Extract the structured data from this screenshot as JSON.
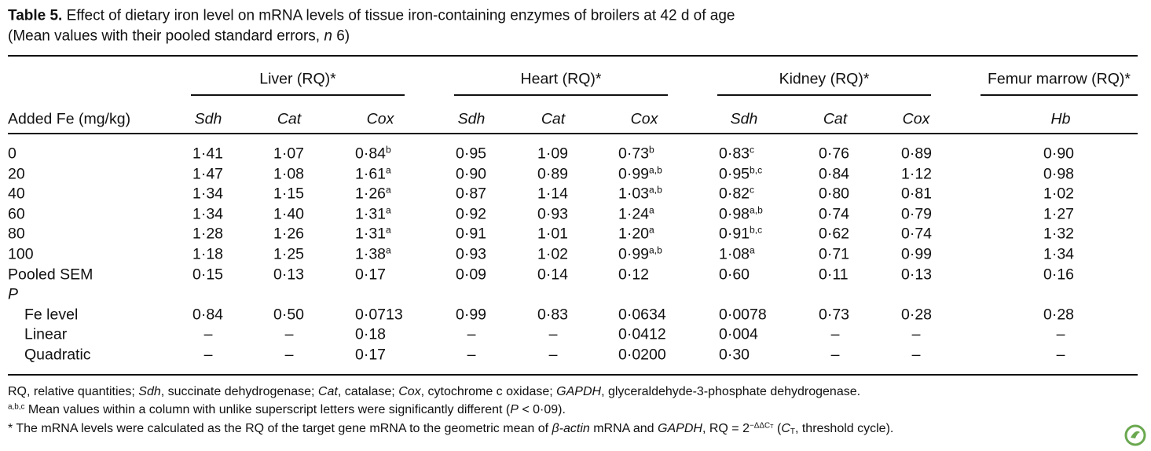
{
  "caption": {
    "line1": [
      {
        "b": "Table 5."
      },
      {
        "t": " Effect of dietary iron level on mRNA levels of tissue iron-containing enzymes of broilers at 42 d of age"
      }
    ],
    "line2": [
      {
        "t": "(Mean values with their pooled standard errors, "
      },
      {
        "i": "n"
      },
      {
        "t": " 6)"
      }
    ]
  },
  "table": {
    "row_header": "Added Fe (mg/kg)",
    "groups": [
      {
        "name": "Liver (RQ)*",
        "genes": [
          "Sdh",
          "Cat",
          "Cox"
        ]
      },
      {
        "name": "Heart (RQ)*",
        "genes": [
          "Sdh",
          "Cat",
          "Cox"
        ]
      },
      {
        "name": "Kidney (RQ)*",
        "genes": [
          "Sdh",
          "Cat",
          "Cox"
        ]
      },
      {
        "name": "Femur marrow (RQ)*",
        "genes": [
          "Hb"
        ]
      }
    ],
    "rows": [
      {
        "label": "0",
        "cells": [
          "1·41",
          "1·07",
          {
            "v": "0·84",
            "sup": "b"
          },
          "0·95",
          "1·09",
          {
            "v": "0·73",
            "sup": "b"
          },
          {
            "v": "0·83",
            "sup": "c"
          },
          "0·76",
          "0·89",
          "0·90"
        ]
      },
      {
        "label": "20",
        "cells": [
          "1·47",
          "1·08",
          {
            "v": "1·61",
            "sup": "a"
          },
          "0·90",
          "0·89",
          {
            "v": "0·99",
            "sup": "a,b"
          },
          {
            "v": "0·95",
            "sup": "b,c"
          },
          "0·84",
          "1·12",
          "0·98"
        ]
      },
      {
        "label": "40",
        "cells": [
          "1·34",
          "1·15",
          {
            "v": "1·26",
            "sup": "a"
          },
          "0·87",
          "1·14",
          {
            "v": "1·03",
            "sup": "a,b"
          },
          {
            "v": "0·82",
            "sup": "c"
          },
          "0·80",
          "0·81",
          "1·02"
        ]
      },
      {
        "label": "60",
        "cells": [
          "1·34",
          "1·40",
          {
            "v": "1·31",
            "sup": "a"
          },
          "0·92",
          "0·93",
          {
            "v": "1·24",
            "sup": "a"
          },
          {
            "v": "0·98",
            "sup": "a,b"
          },
          "0·74",
          "0·79",
          "1·27"
        ]
      },
      {
        "label": "80",
        "cells": [
          "1·28",
          "1·26",
          {
            "v": "1·31",
            "sup": "a"
          },
          "0·91",
          "1·01",
          {
            "v": "1·20",
            "sup": "a"
          },
          {
            "v": "0·91",
            "sup": "b,c"
          },
          "0·62",
          "0·74",
          "1·32"
        ]
      },
      {
        "label": "100",
        "cells": [
          "1·18",
          "1·25",
          {
            "v": "1·38",
            "sup": "a"
          },
          "0·93",
          "1·02",
          {
            "v": "0·99",
            "sup": "a,b"
          },
          {
            "v": "1·08",
            "sup": "a"
          },
          "0·71",
          "0·99",
          "1·34"
        ]
      },
      {
        "label": "Pooled SEM",
        "cells": [
          "0·15",
          "0·13",
          "0·17",
          "0·09",
          "0·14",
          "0·12",
          "0·60",
          "0·11",
          "0·13",
          "0·16"
        ]
      }
    ],
    "p_section": {
      "label": "P",
      "rows": [
        {
          "label": "Fe level",
          "cells": [
            "0·84",
            "0·50",
            "0·0713",
            "0·99",
            "0·83",
            "0·0634",
            "0·0078",
            "0·73",
            "0·28",
            "0·28"
          ]
        },
        {
          "label": "Linear",
          "cells": [
            "–",
            "–",
            "0·18",
            "–",
            "–",
            "0·0412",
            "0·004",
            "–",
            "–",
            "–"
          ]
        },
        {
          "label": "Quadratic",
          "cells": [
            "–",
            "–",
            "0·17",
            "–",
            "–",
            "0·0200",
            "0·30",
            "–",
            "–",
            "–"
          ]
        }
      ]
    }
  },
  "footnotes": [
    [
      {
        "t": "RQ, relative quantities; "
      },
      {
        "i": "Sdh"
      },
      {
        "t": ", succinate dehydrogenase; "
      },
      {
        "i": "Cat"
      },
      {
        "t": ", catalase; "
      },
      {
        "i": "Cox"
      },
      {
        "t": ", cytochrome c oxidase; "
      },
      {
        "i": "GAPDH"
      },
      {
        "t": ", glyceraldehyde-3-phosphate dehydrogenase."
      }
    ],
    [
      {
        "sup": "a,b,c"
      },
      {
        "t": " Mean values within a column with unlike superscript letters were significantly different ("
      },
      {
        "i": "P"
      },
      {
        "t": " < 0·09)."
      }
    ],
    [
      {
        "t": "* The mRNA levels were calculated as the RQ of the target gene mRNA to the geometric mean of "
      },
      {
        "i": "β-actin"
      },
      {
        "t": " mRNA and "
      },
      {
        "i": "GAPDH"
      },
      {
        "t": ", RQ = 2"
      },
      {
        "sup": "−ΔΔC"
      },
      {
        "supsub": "T"
      },
      {
        "t": " ("
      },
      {
        "i": "C"
      },
      {
        "sub": "T"
      },
      {
        "t": ", threshold cycle)."
      }
    ]
  ]
}
